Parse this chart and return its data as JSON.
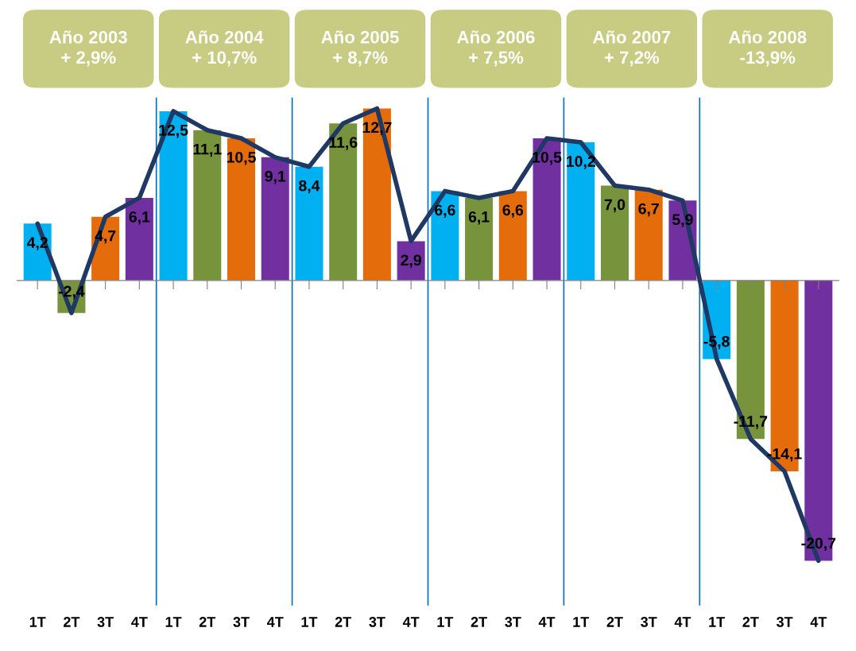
{
  "chart_data": {
    "type": "bar",
    "categories": [
      "1T",
      "2T",
      "3T",
      "4T",
      "1T",
      "2T",
      "3T",
      "4T",
      "1T",
      "2T",
      "3T",
      "4T",
      "1T",
      "2T",
      "3T",
      "4T",
      "1T",
      "2T",
      "3T",
      "4T",
      "1T",
      "2T",
      "3T",
      "4T"
    ],
    "series": [
      {
        "colors": [
          "#00b0f0",
          "#77933c",
          "#e46c0a",
          "#7030a0",
          "#00b0f0",
          "#77933c",
          "#e46c0a",
          "#7030a0",
          "#00b0f0",
          "#77933c",
          "#e46c0a",
          "#7030a0",
          "#00b0f0",
          "#77933c",
          "#e46c0a",
          "#7030a0",
          "#00b0f0",
          "#77933c",
          "#e46c0a",
          "#7030a0",
          "#00b0f0",
          "#77933c",
          "#e46c0a",
          "#7030a0"
        ],
        "values": [
          4.2,
          -2.4,
          4.7,
          6.1,
          12.5,
          11.1,
          10.5,
          9.1,
          8.4,
          11.6,
          12.7,
          2.9,
          6.6,
          6.1,
          6.6,
          10.5,
          10.2,
          7.0,
          6.7,
          5.9,
          -5.8,
          -11.7,
          -14.1,
          -20.7
        ],
        "value_labels": [
          "4,2",
          "-2,4",
          "4,7",
          "6,1",
          "12,5",
          "11,1",
          "10,5",
          "9,1",
          "8,4",
          "11,6",
          "12,7",
          "2,9",
          "6,6",
          "6,1",
          "6,6",
          "10,5",
          "10,2",
          "7,0",
          "6,7",
          "5,9",
          "-5,8",
          "-11,7",
          "-14,1",
          "-20,7"
        ]
      },
      {
        "type": "line",
        "color": "#1f3864",
        "values": [
          4.2,
          -2.4,
          4.7,
          6.1,
          12.5,
          11.1,
          10.5,
          9.1,
          8.4,
          11.6,
          12.7,
          2.9,
          6.6,
          6.1,
          6.6,
          10.5,
          10.2,
          7.0,
          6.7,
          5.9,
          -5.8,
          -11.7,
          -14.1,
          -20.7
        ]
      }
    ],
    "ylim": [
      -24,
      13.5
    ],
    "annotations": [
      "Año 2003\n+ 2,9%",
      "Año 2004\n+ 10,7%",
      "Año 2005\n+ 8,7%",
      "Año 2006\n+ 7,5%",
      "Año 2007\n+ 7,2%",
      "Año 2008\n-13,9%"
    ]
  }
}
